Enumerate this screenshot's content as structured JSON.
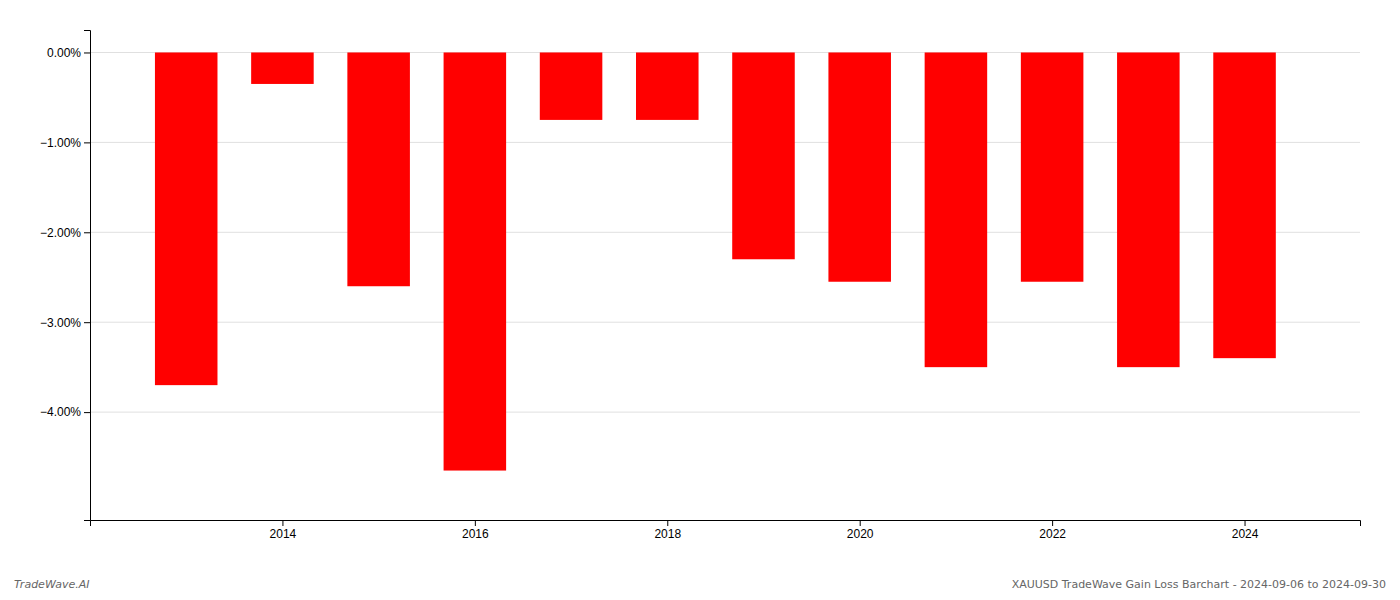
{
  "chart_data": {
    "type": "bar",
    "x": [
      2013,
      2014,
      2015,
      2016,
      2017,
      2018,
      2019,
      2020,
      2021,
      2022,
      2023,
      2024
    ],
    "values": [
      -3.7,
      -0.35,
      -2.6,
      -4.65,
      -0.75,
      -0.75,
      -2.3,
      -2.55,
      -3.5,
      -2.55,
      -3.5,
      -3.4
    ],
    "color": "#ff0000",
    "xlim": [
      2012.0,
      2025.2
    ],
    "xticks": [
      2014,
      2016,
      2018,
      2020,
      2022,
      2024
    ],
    "ylim": [
      -5.2,
      0.25
    ],
    "yticks": [
      {
        "value": 0.0,
        "label": "0.00%"
      },
      {
        "value": -1.0,
        "label": "−1.00%"
      },
      {
        "value": -2.0,
        "label": "−2.00%"
      },
      {
        "value": -3.0,
        "label": "−3.00%"
      },
      {
        "value": -4.0,
        "label": "−4.00%"
      }
    ],
    "grid": true,
    "annotations": [
      "TradeWave.AI",
      "XAUUSD TradeWave Gain Loss Barchart - 2024-09-06 to 2024-09-30"
    ]
  }
}
